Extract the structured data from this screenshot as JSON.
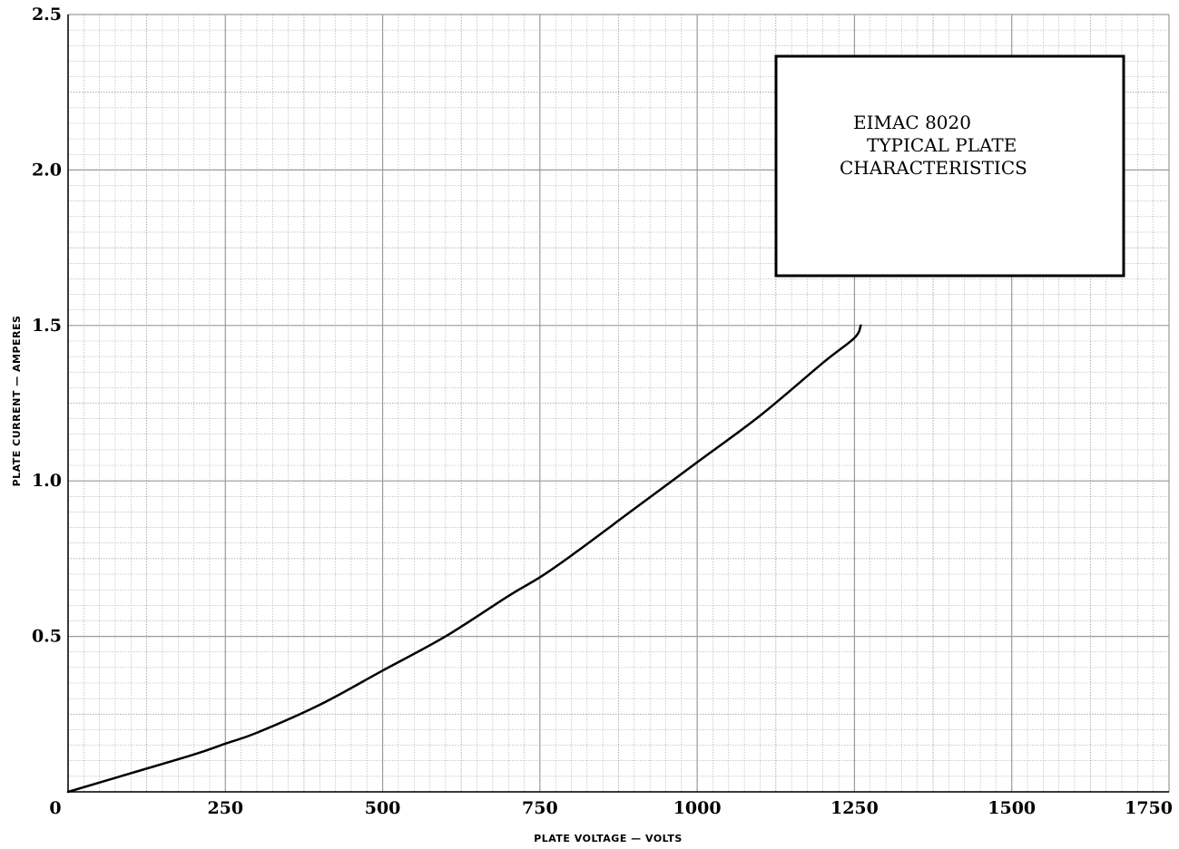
{
  "chart_data": {
    "type": "line",
    "title_lines": [
      "EIMAC 8020",
      "TYPICAL PLATE",
      "CHARACTERISTICS"
    ],
    "xlabel": "PLATE VOLTAGE — VOLTS",
    "ylabel": "PLATE CURRENT — AMPERES",
    "xlim": [
      0,
      1750
    ],
    "ylim": [
      0,
      2.5
    ],
    "x_ticks": [
      "0",
      "250",
      "500",
      "750",
      "1000",
      "1250",
      "1500",
      "1750"
    ],
    "y_ticks": [
      "0.5",
      "1.0",
      "1.5",
      "2.0",
      "2.5"
    ],
    "grid": true,
    "series": [
      {
        "x": [
          0,
          100,
          200,
          250,
          300,
          400,
          500,
          600,
          700,
          750,
          800,
          900,
          1000,
          1100,
          1200,
          1250,
          1260
        ],
        "y": [
          0.0,
          0.06,
          0.12,
          0.155,
          0.19,
          0.28,
          0.39,
          0.5,
          0.63,
          0.69,
          0.76,
          0.91,
          1.06,
          1.21,
          1.38,
          1.46,
          1.5
        ]
      }
    ],
    "line_color": "#000000",
    "grid_color": "#9a9a9a"
  }
}
